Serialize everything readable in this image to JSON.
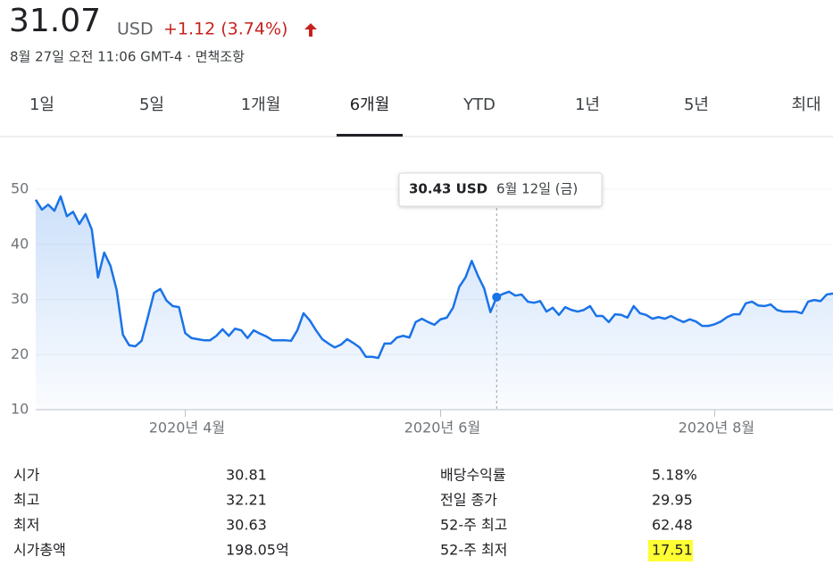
{
  "header": {
    "price": "31.07",
    "currency": "USD",
    "change": "+1.12 (3.74%)",
    "timestamp": "8월 27일 오전 11:06 GMT-4 · 면책조항"
  },
  "tabs": {
    "items": [
      "1일",
      "5일",
      "1개월",
      "6개월",
      "YTD",
      "1년",
      "5년",
      "최대"
    ],
    "selected": 3
  },
  "chart_data": {
    "type": "line",
    "categories": [
      null,
      null,
      null,
      null,
      null,
      null,
      null,
      null,
      null,
      null,
      null,
      null,
      null,
      null,
      null,
      null,
      null,
      null,
      null,
      null,
      null,
      null,
      null,
      null,
      "2020년 4월",
      null,
      null,
      null,
      null,
      null,
      null,
      null,
      null,
      null,
      null,
      null,
      null,
      null,
      null,
      null,
      null,
      null,
      null,
      null,
      null,
      null,
      null,
      null,
      null,
      null,
      null,
      null,
      null,
      null,
      null,
      null,
      null,
      null,
      null,
      null,
      null,
      null,
      null,
      null,
      null,
      "2020년 6월",
      null,
      null,
      null,
      null,
      null,
      null,
      null,
      null,
      null,
      null,
      null,
      null,
      null,
      null,
      null,
      null,
      null,
      null,
      null,
      null,
      null,
      null,
      null,
      null,
      null,
      null,
      null,
      null,
      null,
      null,
      null,
      null,
      null,
      null,
      null,
      null,
      null,
      null,
      null,
      null,
      null,
      null,
      null,
      "2020년 8월",
      null,
      null,
      null,
      null,
      null,
      null,
      null,
      null,
      null,
      null,
      null,
      null,
      null,
      null,
      null,
      null,
      null,
      null,
      null
    ],
    "series": [
      {
        "name": "USD",
        "color": "#1a73e8",
        "values": [
          48.1,
          46.3,
          47.2,
          46.1,
          48.7,
          45.1,
          45.9,
          43.7,
          45.5,
          42.7,
          34.0,
          38.5,
          36.1,
          31.7,
          23.6,
          21.7,
          21.5,
          22.5,
          26.8,
          31.2,
          31.9,
          29.8,
          28.8,
          28.6,
          23.9,
          23.0,
          22.8,
          22.6,
          22.6,
          23.4,
          24.6,
          23.4,
          24.7,
          24.4,
          23.0,
          24.4,
          23.8,
          23.3,
          22.6,
          22.6,
          22.6,
          22.5,
          24.4,
          27.5,
          26.2,
          24.4,
          22.8,
          22.0,
          21.3,
          21.8,
          22.8,
          22.1,
          21.3,
          19.6,
          19.6,
          19.4,
          22.0,
          22.0,
          23.1,
          23.4,
          23.1,
          25.9,
          26.5,
          25.9,
          25.4,
          26.4,
          26.7,
          28.5,
          32.3,
          34.0,
          37.0,
          34.3,
          32.0,
          27.7,
          30.43,
          31.0,
          31.4,
          30.7,
          30.9,
          29.6,
          29.4,
          29.7,
          27.8,
          28.5,
          27.2,
          28.6,
          28.1,
          27.8,
          28.1,
          28.8,
          27.0,
          27.0,
          25.9,
          27.3,
          27.2,
          26.7,
          28.8,
          27.5,
          27.2,
          26.5,
          26.8,
          26.5,
          27.0,
          26.4,
          25.9,
          26.4,
          26.0,
          25.2,
          25.2,
          25.5,
          26.0,
          26.8,
          27.3,
          27.3,
          29.3,
          29.6,
          28.9,
          28.8,
          29.1,
          28.1,
          27.8,
          27.8,
          27.8,
          27.5,
          29.6,
          29.9,
          29.7,
          30.9,
          31.07
        ]
      }
    ],
    "ylim": [
      10,
      50
    ],
    "yticks": [
      10,
      20,
      30,
      40,
      50
    ],
    "grid": true,
    "tooltip": {
      "label": "30.43 USD",
      "date": "6월 12일 (금)"
    }
  },
  "stats": {
    "left": [
      [
        "시가",
        "30.81"
      ],
      [
        "최고",
        "32.21"
      ],
      [
        "최저",
        "30.63"
      ],
      [
        "시가총액",
        "198.05억"
      ]
    ],
    "right": [
      [
        "배당수익률",
        "5.18%"
      ],
      [
        "전일 종가",
        "29.95"
      ],
      [
        "52-주 최고",
        "62.48"
      ],
      [
        "52-주 최저",
        "17.51"
      ]
    ]
  }
}
